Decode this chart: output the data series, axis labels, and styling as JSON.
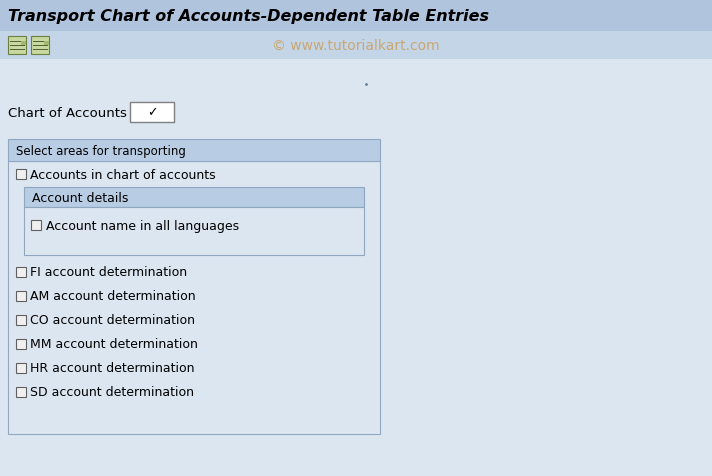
{
  "title": "Transport Chart of Accounts-Dependent Table Entries",
  "watermark": "© www.tutorialkart.com",
  "bg_color": "#dce6f1",
  "title_bg": "#b0c4de",
  "toolbar_bg": "#c5d5e8",
  "title_color": "#000000",
  "title_fontsize": 11.5,
  "watermark_color": "#c8a060",
  "watermark_fontsize": 10,
  "chart_of_accounts_label": "Chart of Accounts",
  "group_box_title": "Select areas for transporting",
  "group_box_bg": "#dce6f1",
  "group_box_border": "#90a8c0",
  "inner_box_bg": "#d0dcea",
  "inner_box_border": "#8fa8c0",
  "account_details_bg": "#b8cce4",
  "account_details_label": "Account details",
  "det_labels": [
    "FI account determination",
    "AM account determination",
    "CO account determination",
    "MM account determination",
    "HR account determination",
    "SD account determination"
  ],
  "fig_width": 7.12,
  "fig_height": 4.77,
  "dpi": 100
}
